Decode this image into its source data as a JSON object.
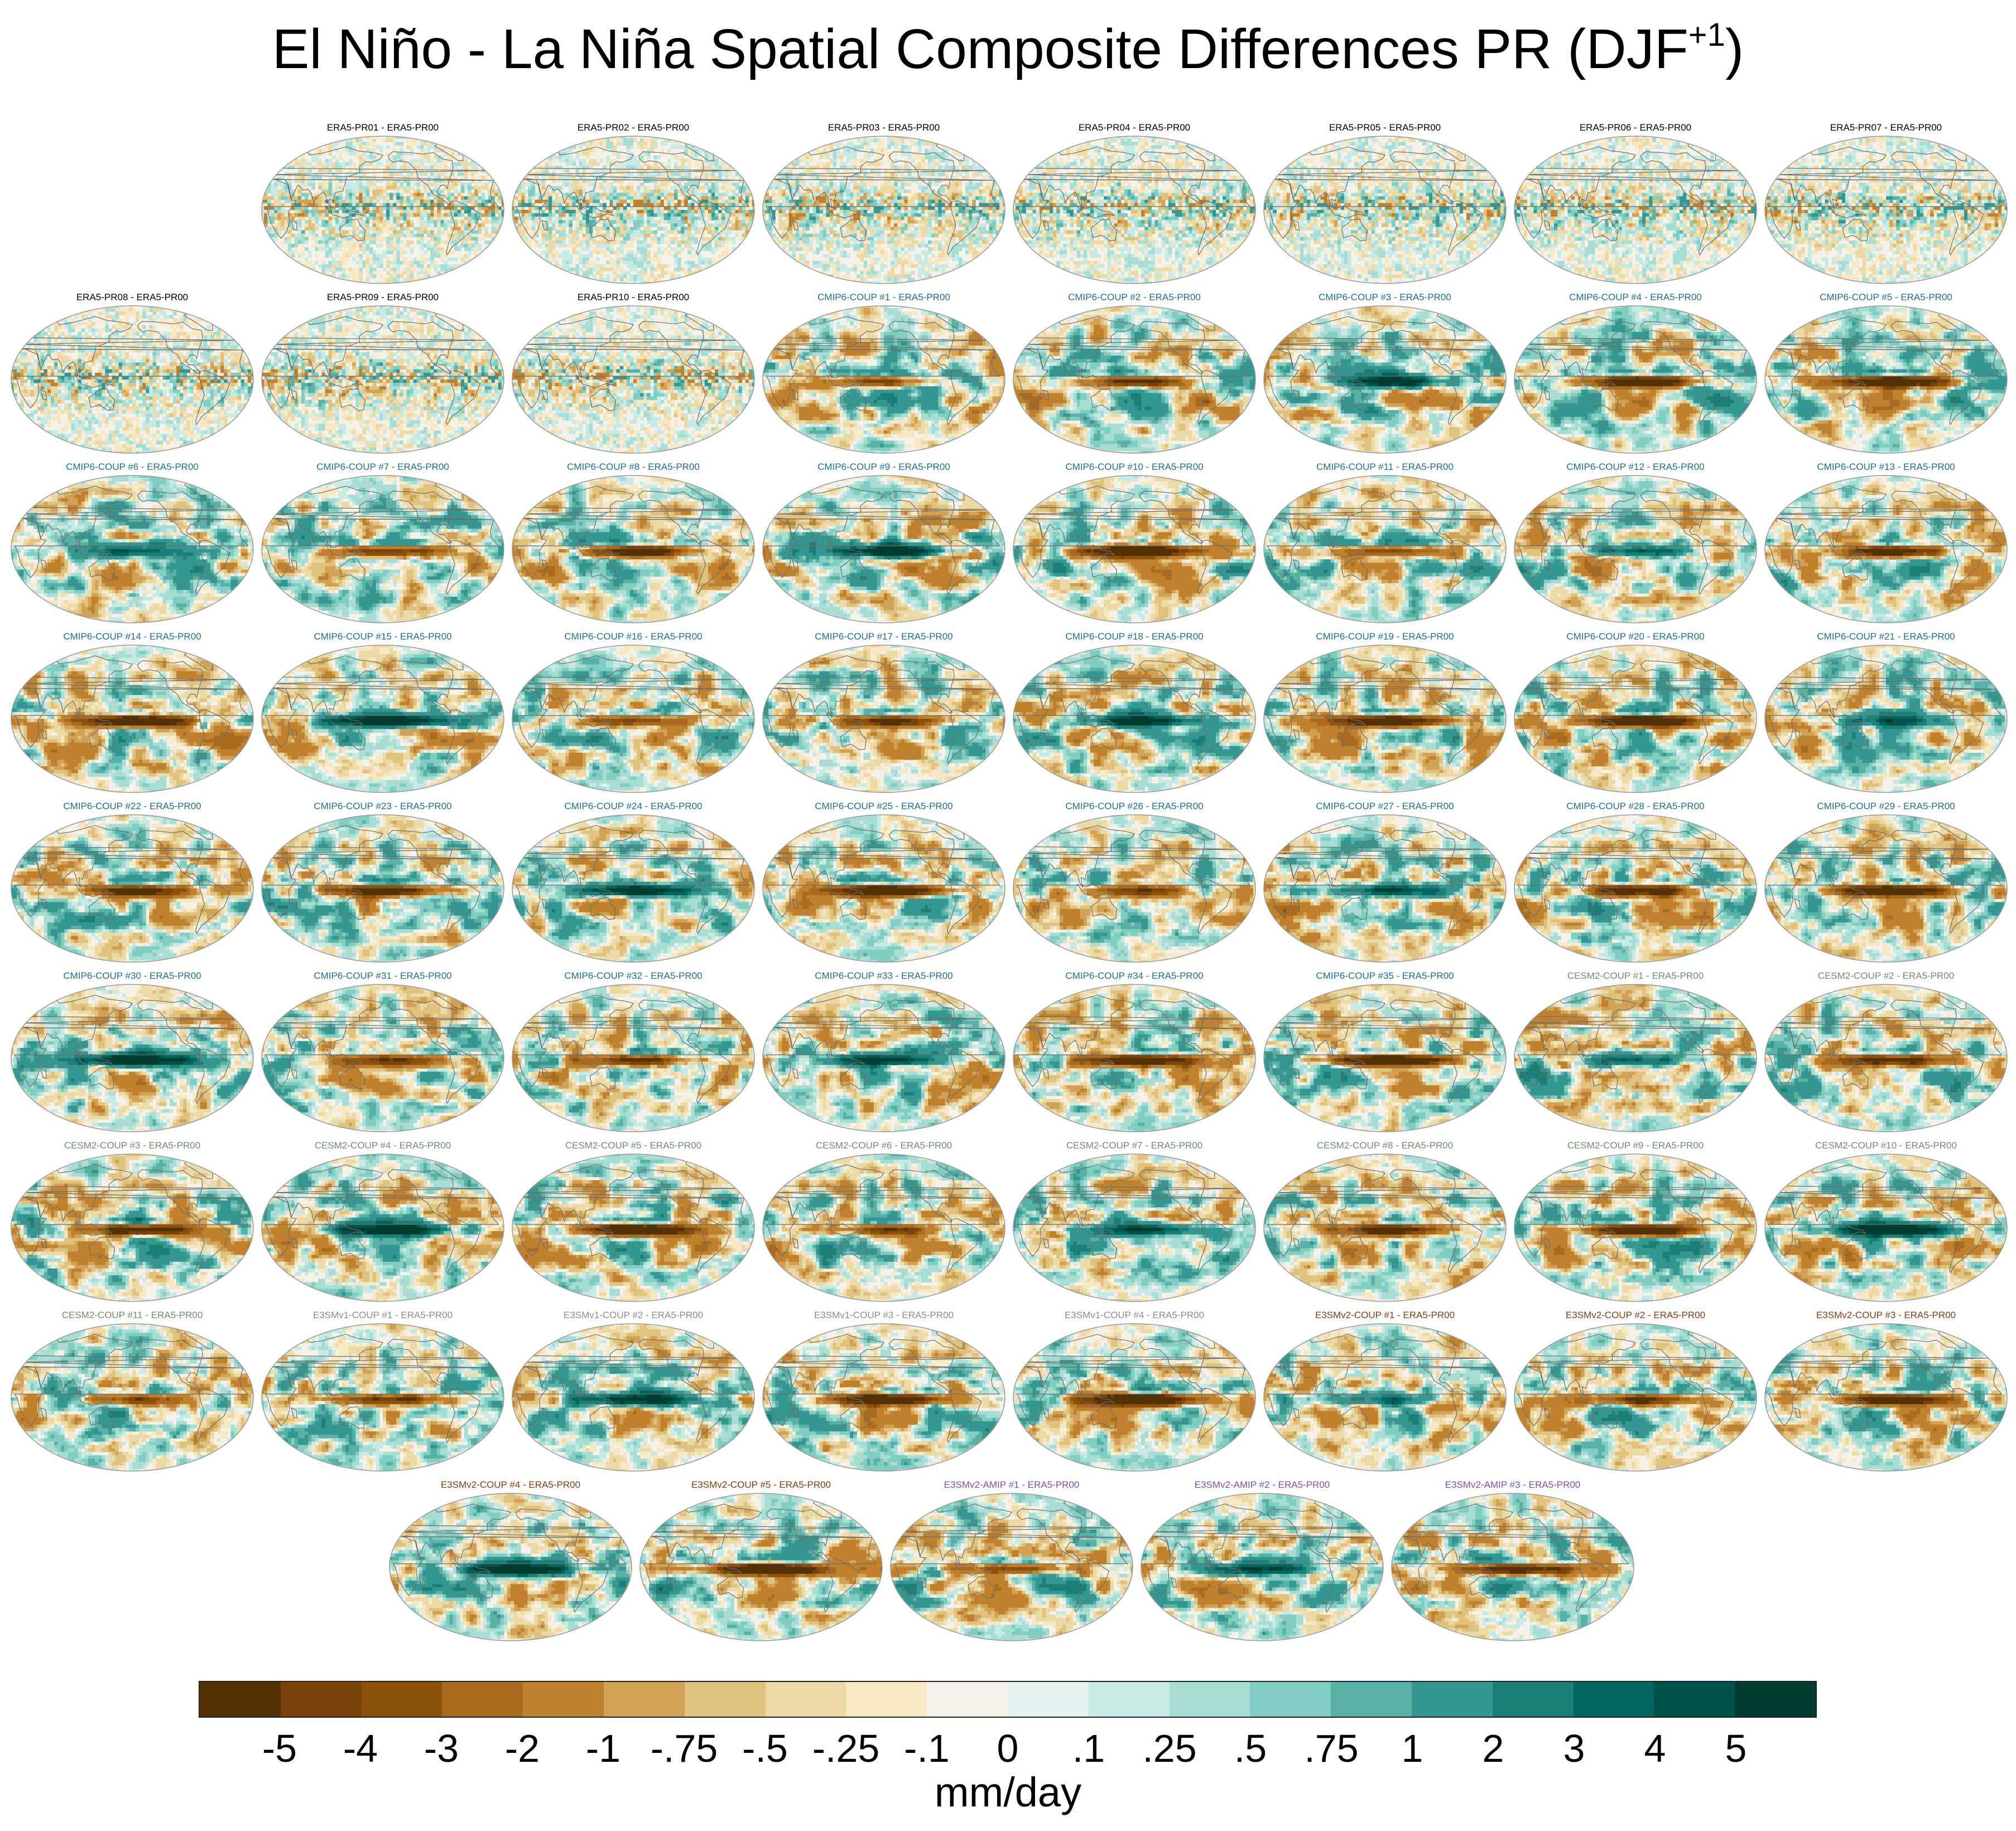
{
  "title": {
    "text": "El Niño - La Niña Spatial Composite Differences PR (DJF",
    "superscript": "+1",
    "suffix": ")"
  },
  "group_colors": {
    "era5": "#000000",
    "cmip6": "#1b6f95",
    "cesm2": "#6e8f6e",
    "e3smv1": "#8c8c8c",
    "e3smv2": "#8b3a0f",
    "e3smv2amip": "#7a4fbf"
  },
  "chart_data": {
    "type": "heatmap",
    "title": "El Niño - La Niña Spatial Composite Differences PR (DJF+1)",
    "variable": "PR",
    "season": "DJF+1",
    "units": "mm/day",
    "projection": "Robinson / Pacific-centred global map",
    "panels": [
      {
        "label": "ERA5-PR01 - ERA5-PR00",
        "group": "era5"
      },
      {
        "label": "ERA5-PR02 - ERA5-PR00",
        "group": "era5"
      },
      {
        "label": "ERA5-PR03 - ERA5-PR00",
        "group": "era5"
      },
      {
        "label": "ERA5-PR04 - ERA5-PR00",
        "group": "era5"
      },
      {
        "label": "ERA5-PR05 - ERA5-PR00",
        "group": "era5"
      },
      {
        "label": "ERA5-PR06 - ERA5-PR00",
        "group": "era5"
      },
      {
        "label": "ERA5-PR07 - ERA5-PR00",
        "group": "era5"
      },
      {
        "label": "ERA5-PR08 - ERA5-PR00",
        "group": "era5"
      },
      {
        "label": "ERA5-PR09 - ERA5-PR00",
        "group": "era5"
      },
      {
        "label": "ERA5-PR10 - ERA5-PR00",
        "group": "era5"
      },
      {
        "label": "CMIP6-COUP #1 - ERA5-PR00",
        "group": "cmip6"
      },
      {
        "label": "CMIP6-COUP #2 - ERA5-PR00",
        "group": "cmip6"
      },
      {
        "label": "CMIP6-COUP #3 - ERA5-PR00",
        "group": "cmip6"
      },
      {
        "label": "CMIP6-COUP #4 - ERA5-PR00",
        "group": "cmip6"
      },
      {
        "label": "CMIP6-COUP #5 - ERA5-PR00",
        "group": "cmip6"
      },
      {
        "label": "CMIP6-COUP #6 - ERA5-PR00",
        "group": "cmip6"
      },
      {
        "label": "CMIP6-COUP #7 - ERA5-PR00",
        "group": "cmip6"
      },
      {
        "label": "CMIP6-COUP #8 - ERA5-PR00",
        "group": "cmip6"
      },
      {
        "label": "CMIP6-COUP #9 - ERA5-PR00",
        "group": "cmip6"
      },
      {
        "label": "CMIP6-COUP #10 - ERA5-PR00",
        "group": "cmip6"
      },
      {
        "label": "CMIP6-COUP #11 - ERA5-PR00",
        "group": "cmip6"
      },
      {
        "label": "CMIP6-COUP #12 - ERA5-PR00",
        "group": "cmip6"
      },
      {
        "label": "CMIP6-COUP #13 - ERA5-PR00",
        "group": "cmip6"
      },
      {
        "label": "CMIP6-COUP #14 - ERA5-PR00",
        "group": "cmip6"
      },
      {
        "label": "CMIP6-COUP #15 - ERA5-PR00",
        "group": "cmip6"
      },
      {
        "label": "CMIP6-COUP #16 - ERA5-PR00",
        "group": "cmip6"
      },
      {
        "label": "CMIP6-COUP #17 - ERA5-PR00",
        "group": "cmip6"
      },
      {
        "label": "CMIP6-COUP #18 - ERA5-PR00",
        "group": "cmip6"
      },
      {
        "label": "CMIP6-COUP #19 - ERA5-PR00",
        "group": "cmip6"
      },
      {
        "label": "CMIP6-COUP #20 - ERA5-PR00",
        "group": "cmip6"
      },
      {
        "label": "CMIP6-COUP #21 - ERA5-PR00",
        "group": "cmip6"
      },
      {
        "label": "CMIP6-COUP #22 - ERA5-PR00",
        "group": "cmip6"
      },
      {
        "label": "CMIP6-COUP #23 - ERA5-PR00",
        "group": "cmip6"
      },
      {
        "label": "CMIP6-COUP #24 - ERA5-PR00",
        "group": "cmip6"
      },
      {
        "label": "CMIP6-COUP #25 - ERA5-PR00",
        "group": "cmip6"
      },
      {
        "label": "CMIP6-COUP #26 - ERA5-PR00",
        "group": "cmip6"
      },
      {
        "label": "CMIP6-COUP #27 - ERA5-PR00",
        "group": "cmip6"
      },
      {
        "label": "CMIP6-COUP #28 - ERA5-PR00",
        "group": "cmip6"
      },
      {
        "label": "CMIP6-COUP #29 - ERA5-PR00",
        "group": "cmip6"
      },
      {
        "label": "CMIP6-COUP #30 - ERA5-PR00",
        "group": "cmip6"
      },
      {
        "label": "CMIP6-COUP #31 - ERA5-PR00",
        "group": "cmip6"
      },
      {
        "label": "CMIP6-COUP #32 - ERA5-PR00",
        "group": "cmip6"
      },
      {
        "label": "CMIP6-COUP #33 - ERA5-PR00",
        "group": "cmip6"
      },
      {
        "label": "CMIP6-COUP #34 - ERA5-PR00",
        "group": "cmip6"
      },
      {
        "label": "CMIP6-COUP #35 - ERA5-PR00",
        "group": "cmip6"
      },
      {
        "label": "CESM2-COUP #1 - ERA5-PR00",
        "group": "cesm2"
      },
      {
        "label": "CESM2-COUP #2 - ERA5-PR00",
        "group": "cesm2"
      },
      {
        "label": "CESM2-COUP #3 - ERA5-PR00",
        "group": "cesm2"
      },
      {
        "label": "CESM2-COUP #4 - ERA5-PR00",
        "group": "cesm2"
      },
      {
        "label": "CESM2-COUP #5 - ERA5-PR00",
        "group": "cesm2"
      },
      {
        "label": "CESM2-COUP #6 - ERA5-PR00",
        "group": "cesm2"
      },
      {
        "label": "CESM2-COUP #7 - ERA5-PR00",
        "group": "cesm2"
      },
      {
        "label": "CESM2-COUP #8 - ERA5-PR00",
        "group": "cesm2"
      },
      {
        "label": "CESM2-COUP #9 - ERA5-PR00",
        "group": "cesm2"
      },
      {
        "label": "CESM2-COUP #10 - ERA5-PR00",
        "group": "cesm2"
      },
      {
        "label": "CESM2-COUP #11 - ERA5-PR00",
        "group": "cesm2"
      },
      {
        "label": "E3SMv1-COUP #1 - ERA5-PR00",
        "group": "e3smv1"
      },
      {
        "label": "E3SMv1-COUP #2 - ERA5-PR00",
        "group": "e3smv1"
      },
      {
        "label": "E3SMv1-COUP #3 - ERA5-PR00",
        "group": "e3smv1"
      },
      {
        "label": "E3SMv1-COUP #4 - ERA5-PR00",
        "group": "e3smv1"
      },
      {
        "label": "E3SMv2-COUP #1 - ERA5-PR00",
        "group": "e3smv2"
      },
      {
        "label": "E3SMv2-COUP #2 - ERA5-PR00",
        "group": "e3smv2"
      },
      {
        "label": "E3SMv2-COUP #3 - ERA5-PR00",
        "group": "e3smv2"
      },
      {
        "label": "E3SMv2-COUP #4 - ERA5-PR00",
        "group": "e3smv2"
      },
      {
        "label": "E3SMv2-COUP #5 - ERA5-PR00",
        "group": "e3smv2"
      },
      {
        "label": "E3SMv2-AMIP #1 - ERA5-PR00",
        "group": "e3smv2amip"
      },
      {
        "label": "E3SMv2-AMIP #2 - ERA5-PR00",
        "group": "e3smv2amip"
      },
      {
        "label": "E3SMv2-AMIP #3 - ERA5-PR00",
        "group": "e3smv2amip"
      }
    ],
    "colorbar": {
      "label": "mm/day",
      "tick_labels": [
        "-5",
        "-4",
        "-3",
        "-2",
        "-1",
        "-.75",
        "-.5",
        "-.25",
        "-.1",
        "0",
        ".1",
        ".25",
        ".5",
        ".75",
        "1",
        "2",
        "3",
        "4",
        "5"
      ],
      "levels": [
        -5,
        -4,
        -3,
        -2,
        -1,
        -0.75,
        -0.5,
        -0.25,
        -0.1,
        0,
        0.1,
        0.25,
        0.5,
        0.75,
        1,
        2,
        3,
        4,
        5
      ],
      "colors": [
        "#543005",
        "#7a430c",
        "#8c510a",
        "#a96b1f",
        "#bf812d",
        "#d1a255",
        "#dfc27d",
        "#ebd9a6",
        "#f6e8c3",
        "#f5f2ea",
        "#e4f1ee",
        "#c7eae5",
        "#a8ddd3",
        "#80cdc1",
        "#59b1a5",
        "#35978f",
        "#1c7f76",
        "#01665e",
        "#015248",
        "#003c30"
      ]
    }
  }
}
